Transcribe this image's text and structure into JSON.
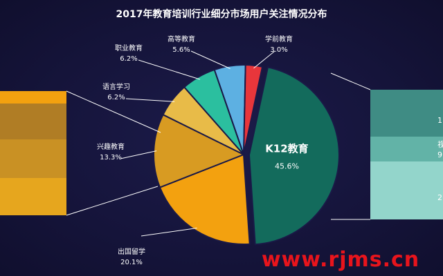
{
  "chart_data": {
    "type": "pie",
    "title": "2017年教育培训行业细分市场用户关注情况分布",
    "slices": [
      {
        "name": "K12教育",
        "value": 45.6,
        "label": "45.6%",
        "color": "#136b5c"
      },
      {
        "name": "出国留学",
        "value": 20.1,
        "label": "20.1%",
        "color": "#f3a10f"
      },
      {
        "name": "兴趣教育",
        "value": 13.3,
        "label": "13.3%",
        "color": "#d89b22"
      },
      {
        "name": "语言学习",
        "value": 6.2,
        "label": "6.2%",
        "color": "#e8bb48"
      },
      {
        "name": "职业教育",
        "value": 6.2,
        "label": "6.2%",
        "color": "#2bbf9f"
      },
      {
        "name": "高等教育",
        "value": 5.6,
        "label": "5.6%",
        "color": "#5db0e2"
      },
      {
        "name": "学前教育",
        "value": 3.0,
        "label": "3.0%",
        "color": "#e8363b"
      }
    ],
    "legend": "none"
  },
  "watermark": "www.rjms.cn",
  "right_edge_fragments": [
    "1",
    "视",
    "9",
    "2"
  ]
}
